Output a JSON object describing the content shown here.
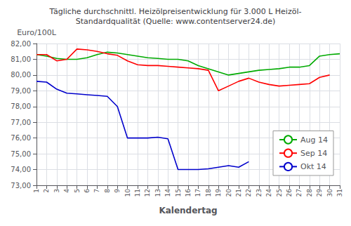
{
  "chart_data": {
    "type": "line",
    "title": "Tägliche durchschnittl. Heizölpreisentwicklung für 3.000 L Heizöl-\nStandardqualität (Quelle: www.contentserver24.de)",
    "xlabel": "Kalendertag",
    "ylabel": "Euro/100L",
    "x": [
      1,
      2,
      3,
      4,
      5,
      6,
      7,
      8,
      9,
      10,
      11,
      12,
      13,
      14,
      15,
      16,
      17,
      18,
      19,
      20,
      21,
      22,
      23,
      24,
      25,
      26,
      27,
      28,
      29,
      30,
      31
    ],
    "xlim": [
      1,
      31
    ],
    "xticks": [
      1,
      2,
      3,
      4,
      5,
      6,
      7,
      8,
      9,
      10,
      11,
      12,
      13,
      14,
      15,
      16,
      17,
      18,
      19,
      20,
      21,
      22,
      23,
      24,
      25,
      26,
      27,
      28,
      29,
      30,
      31
    ],
    "ylim": [
      73.0,
      82.0
    ],
    "yticks": [
      {
        "value": 73.0,
        "label": "73,00"
      },
      {
        "value": 74.0,
        "label": "74,00"
      },
      {
        "value": 75.0,
        "label": "75,00"
      },
      {
        "value": 76.0,
        "label": "76,00"
      },
      {
        "value": 77.0,
        "label": "77,00"
      },
      {
        "value": 78.0,
        "label": "78,00"
      },
      {
        "value": 79.0,
        "label": "79,00"
      },
      {
        "value": 80.0,
        "label": "80,00"
      },
      {
        "value": 81.0,
        "label": "81,00"
      },
      {
        "value": 82.0,
        "label": "82,00"
      }
    ],
    "grid": true,
    "legend": "lower right",
    "series": [
      {
        "name": "Aug 14",
        "color": "#00AA00",
        "values": [
          81.3,
          81.2,
          81.05,
          81.0,
          81.0,
          81.1,
          81.3,
          81.45,
          81.4,
          81.3,
          81.2,
          81.1,
          81.05,
          81.0,
          81.0,
          80.9,
          80.6,
          80.4,
          80.2,
          80.0,
          80.1,
          80.2,
          80.3,
          80.35,
          80.4,
          80.5,
          80.5,
          80.6,
          81.2,
          81.3,
          81.35
        ]
      },
      {
        "name": "Sep 14",
        "color": "#FF0000",
        "values": [
          81.3,
          81.3,
          80.9,
          81.0,
          81.65,
          81.6,
          81.5,
          81.35,
          81.25,
          80.9,
          80.65,
          80.6,
          80.6,
          80.55,
          80.5,
          80.45,
          80.4,
          80.3,
          79.0,
          79.3,
          79.6,
          79.8,
          79.55,
          79.4,
          79.3,
          79.35,
          79.4,
          79.45,
          79.85,
          80.0,
          null
        ]
      },
      {
        "name": "Okt 14",
        "color": "#0000CC",
        "values": [
          79.6,
          79.55,
          79.1,
          78.85,
          78.8,
          78.75,
          78.7,
          78.65,
          78.0,
          76.0,
          76.0,
          76.0,
          76.05,
          75.95,
          74.0,
          74.0,
          74.0,
          74.05,
          74.15,
          74.25,
          74.15,
          74.5,
          null,
          null,
          null,
          null,
          null,
          null,
          null,
          null,
          null
        ]
      }
    ]
  }
}
